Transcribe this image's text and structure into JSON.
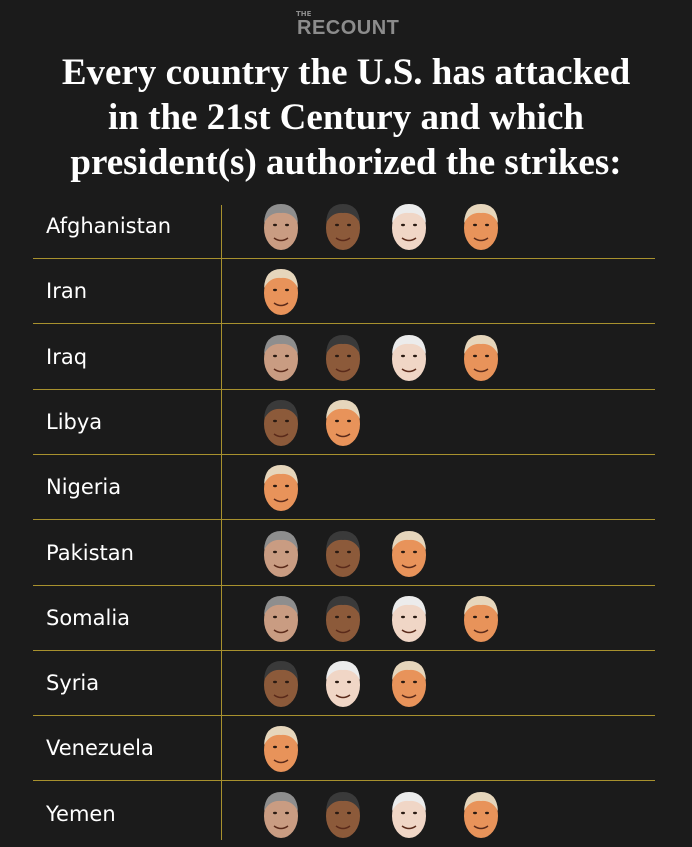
{
  "logo": {
    "the": "THE",
    "name": "RECOUNT"
  },
  "title": [
    "Every country the U.S. has attacked",
    "in the 21st Century and which",
    "president(s) authorized the strikes:"
  ],
  "colors": {
    "background": "#1b1b1b",
    "divider": "#a8912e",
    "text": "#ffffff"
  },
  "face_icons": {
    "bush-face": {
      "skin": "#c99c82",
      "hair": "#8e8e8e"
    },
    "obama-face": {
      "skin": "#8c5a3a",
      "hair": "#3a3a3a"
    },
    "biden-face": {
      "skin": "#f0d6c6",
      "hair": "#ececec"
    },
    "trump-face": {
      "skin": "#e8935a",
      "hair": "#e6d6bc"
    }
  },
  "chart_data": {
    "type": "table",
    "rows": [
      {
        "country": "Afghanistan",
        "faces": [
          "bush-face",
          "obama-face",
          "biden-face",
          "trump-face"
        ]
      },
      {
        "country": "Iran",
        "faces": [
          "trump-face"
        ]
      },
      {
        "country": "Iraq",
        "faces": [
          "bush-face",
          "obama-face",
          "biden-face",
          "trump-face"
        ]
      },
      {
        "country": "Libya",
        "faces": [
          "obama-face",
          "trump-face"
        ]
      },
      {
        "country": "Nigeria",
        "faces": [
          "trump-face"
        ]
      },
      {
        "country": "Pakistan",
        "faces": [
          "bush-face",
          "obama-face",
          "trump-face"
        ]
      },
      {
        "country": "Somalia",
        "faces": [
          "bush-face",
          "obama-face",
          "biden-face",
          "trump-face"
        ]
      },
      {
        "country": "Syria",
        "faces": [
          "obama-face",
          "biden-face",
          "trump-face"
        ]
      },
      {
        "country": "Venezuela",
        "faces": [
          "trump-face"
        ]
      },
      {
        "country": "Yemen",
        "faces": [
          "bush-face",
          "obama-face",
          "biden-face",
          "trump-face"
        ]
      }
    ]
  }
}
